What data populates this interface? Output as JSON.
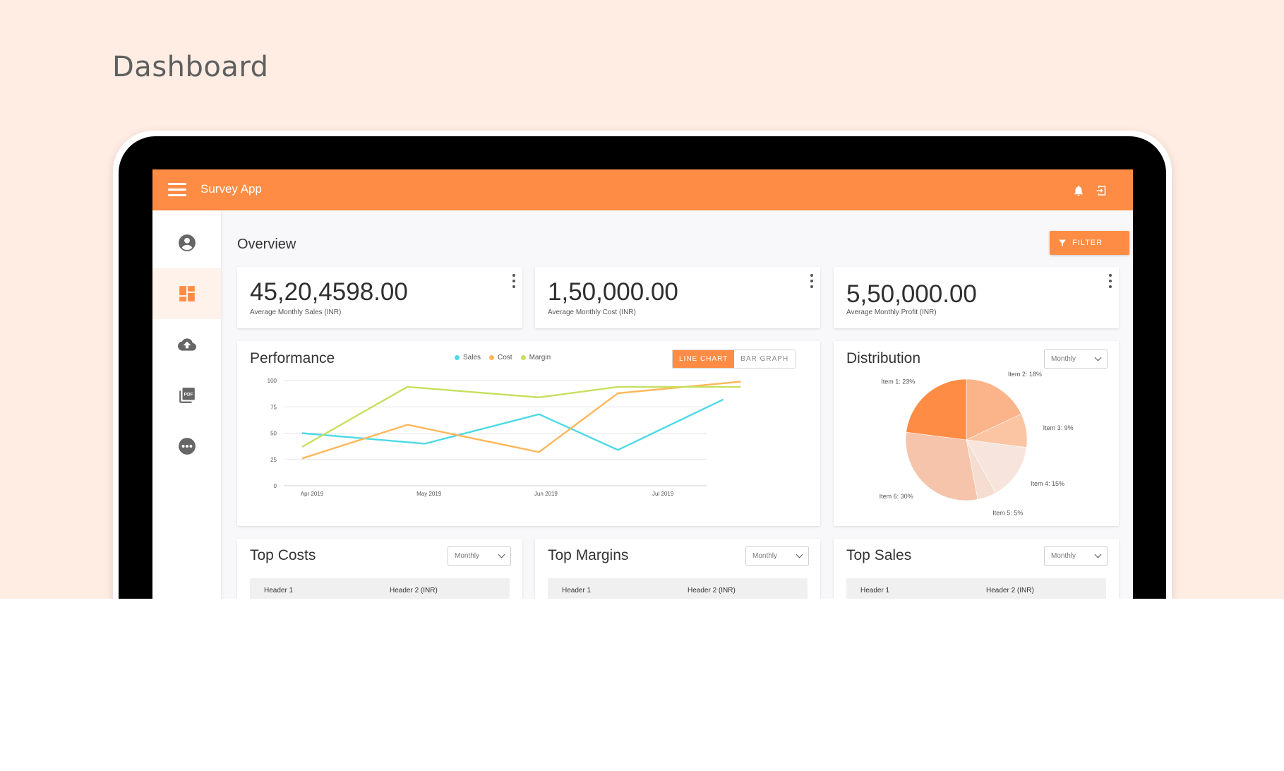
{
  "page": {
    "title": "Dashboard"
  },
  "app": {
    "name": "Survey App"
  },
  "overview": {
    "title": "Overview",
    "filter_label": "FILTER"
  },
  "stats": [
    {
      "value": "45,20,4598.00",
      "label": "Average Monthly Sales (INR)"
    },
    {
      "value": "1,50,000.00",
      "label": "Average Monthly Cost (INR)"
    },
    {
      "value": "5,50,000.00",
      "label": "Average Monthly Profit (INR)"
    }
  ],
  "performance": {
    "title": "Performance",
    "toggle": {
      "line": "LINE CHART",
      "bar": "BAR GRAPH"
    }
  },
  "distribution": {
    "title": "Distribution",
    "period": "Monthly"
  },
  "top_costs": {
    "title": "Top Costs",
    "period": "Monthly",
    "header1": "Header 1",
    "header2": "Header 2 (INR)"
  },
  "top_margins": {
    "title": "Top Margins",
    "period": "Monthly",
    "header1": "Header 1",
    "header2": "Header 2 (INR)"
  },
  "top_sales": {
    "title": "Top Sales",
    "period": "Monthly",
    "header1": "Header 1",
    "header2": "Header 2 (INR)"
  },
  "colors": {
    "accent": "#ff8c44",
    "sales": "#4dd9e6",
    "cost": "#ffb75a",
    "margin": "#c7e05e"
  },
  "chart_data": [
    {
      "type": "line",
      "x": [
        "Apr 2019",
        "",
        "May 2019",
        "",
        "Jun 2019",
        "",
        "Jul 2019",
        ""
      ],
      "x_tick_labels": [
        "Apr 2019",
        "May 2019",
        "Jun 2019",
        "Jul 2019"
      ],
      "y_ticks": [
        0,
        25,
        50,
        75,
        100
      ],
      "ylim": [
        0,
        100
      ],
      "grid": true,
      "legend_position": "top",
      "series": [
        {
          "name": "Sales",
          "color": "#4dd9e6",
          "values": [
            50,
            null,
            40,
            null,
            68,
            34,
            null,
            82
          ]
        },
        {
          "name": "Cost",
          "color": "#ffb75a",
          "values": [
            26,
            null,
            58,
            null,
            32,
            88,
            null,
            99
          ]
        },
        {
          "name": "Margin",
          "color": "#c7e05e",
          "values": [
            37,
            null,
            94,
            null,
            84,
            94,
            null,
            94
          ]
        }
      ],
      "points": {
        "Sales": [
          [
            0,
            50
          ],
          [
            2.1,
            40
          ],
          [
            4.05,
            68
          ],
          [
            5.4,
            34
          ],
          [
            7.2,
            82
          ]
        ],
        "Cost": [
          [
            0,
            26
          ],
          [
            1.8,
            58
          ],
          [
            4.05,
            32
          ],
          [
            5.4,
            88
          ],
          [
            7.5,
            99
          ]
        ],
        "Margin": [
          [
            0,
            37
          ],
          [
            1.8,
            94
          ],
          [
            4.05,
            84
          ],
          [
            5.4,
            94
          ],
          [
            7.5,
            94
          ]
        ]
      }
    },
    {
      "type": "pie",
      "categories": [
        "Item 1",
        "Item 2",
        "Item 3",
        "Item 4",
        "Item 5",
        "Item 6"
      ],
      "values": [
        23,
        18,
        9,
        15,
        5,
        30
      ],
      "labels": [
        "Item 1: 23%",
        "Item 2: 18%",
        "Item 3: 9%",
        "Item 4: 15%",
        "Item 5: 5%",
        "Item 6: 30%"
      ],
      "colors": [
        "#ff8c44",
        "#fbb48a",
        "#fbc5a3",
        "#f7e5dd",
        "#f5ddd1",
        "#f6c4ab"
      ]
    }
  ]
}
